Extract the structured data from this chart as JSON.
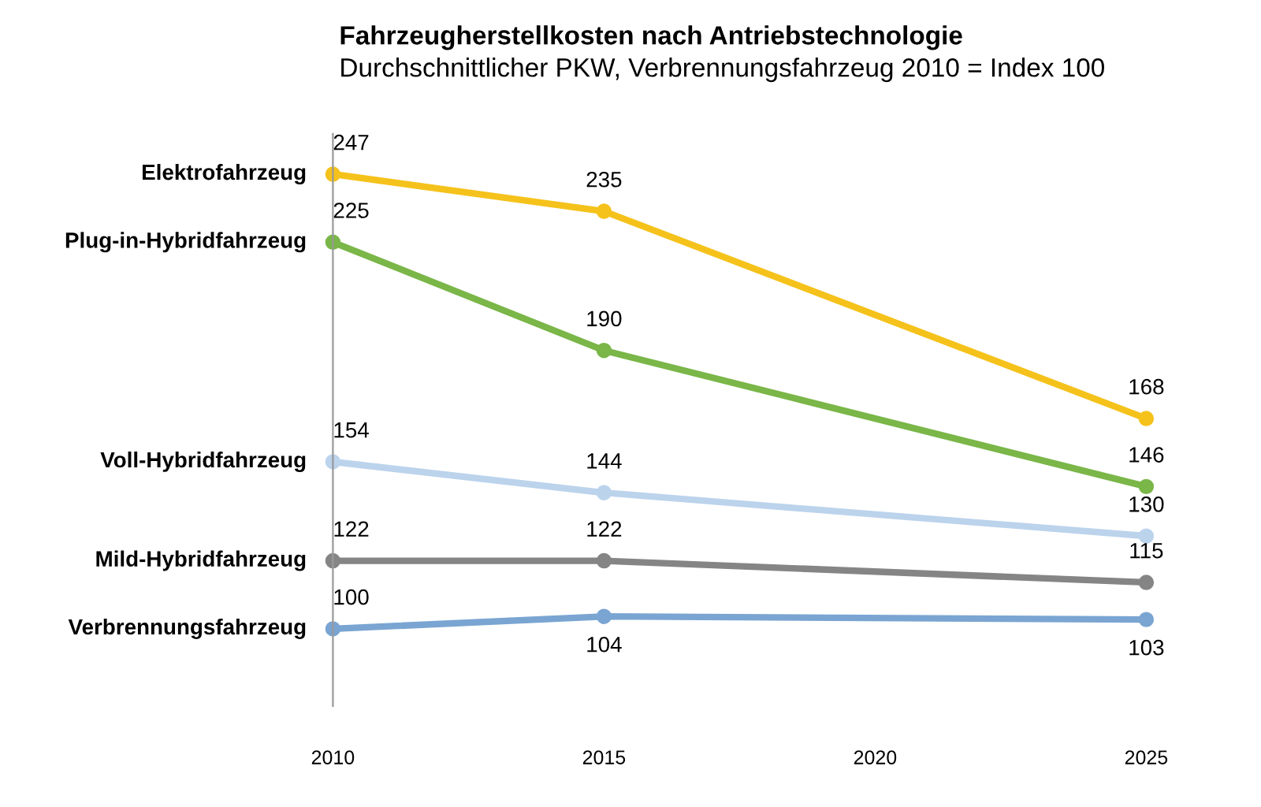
{
  "chart_data": {
    "type": "line",
    "title": "Fahrzeugherstellkosten nach Antriebstechnologie",
    "subtitle": "Durchschnittlicher PKW, Verbrennungsfahrzeug 2010 = Index 100",
    "x": [
      2010,
      2015,
      2025
    ],
    "xlim": [
      2010,
      2025
    ],
    "xticks": [
      2010,
      2015,
      2020,
      2025
    ],
    "ylim": [
      75,
      260
    ],
    "series": [
      {
        "name": "Elektrofahrzeug",
        "color": "#f5c21b",
        "values": [
          247,
          235,
          168
        ]
      },
      {
        "name": "Plug-in-Hybridfahrzeug",
        "color": "#7ab648",
        "values": [
          225,
          190,
          146
        ]
      },
      {
        "name": "Voll-Hybridfahrzeug",
        "color": "#bcd3ec",
        "values": [
          154,
          144,
          130
        ]
      },
      {
        "name": "Mild-Hybridfahrzeug",
        "color": "#858585",
        "values": [
          122,
          122,
          115
        ]
      },
      {
        "name": "Verbrennungsfahrzeug",
        "color": "#7aa5d2",
        "values": [
          100,
          104,
          103
        ]
      }
    ],
    "data_labels": true,
    "marker": "circle",
    "line_style": "solid",
    "grid": false,
    "legend": false
  }
}
